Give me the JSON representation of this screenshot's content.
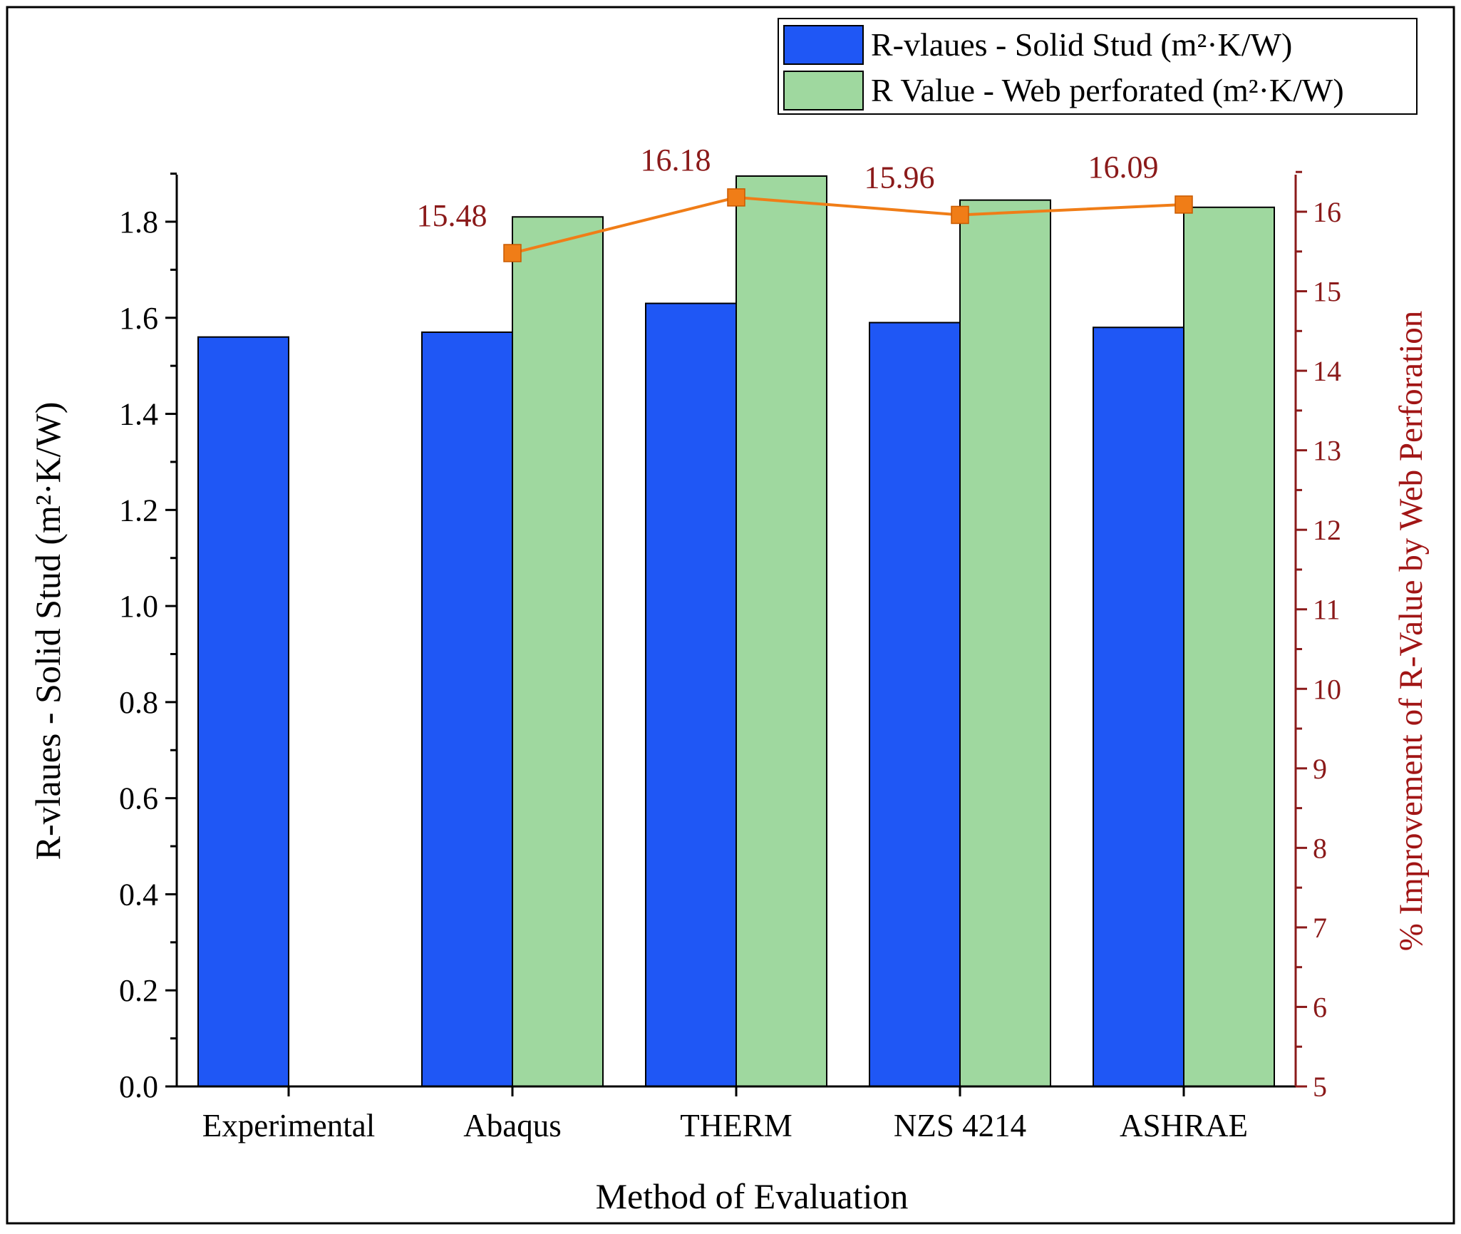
{
  "chart_data": {
    "type": "bar",
    "categories": [
      "Experimental",
      "Abaqus",
      "THERM",
      "NZS 4214",
      "ASHRAE"
    ],
    "series": [
      {
        "name": "R-vlaues - Solid Stud (m²·K/W)",
        "type": "bar",
        "axis": "left",
        "color": "#1f57f5",
        "values": [
          1.56,
          1.57,
          1.63,
          1.59,
          1.58
        ]
      },
      {
        "name": "R Value - Web perforated (m²·K/W)",
        "type": "bar",
        "axis": "left",
        "color": "#9fd89f",
        "values": [
          null,
          1.81,
          1.895,
          1.845,
          1.83
        ]
      },
      {
        "name": "% Improvement of R-Value by Web Perforation",
        "type": "line",
        "axis": "right",
        "color": "#f07d17",
        "values": [
          null,
          15.48,
          16.18,
          15.96,
          16.09
        ],
        "labels": [
          null,
          "15.48",
          "16.18",
          "15.96",
          "16.09"
        ]
      }
    ],
    "xlabel": "Method of Evaluation",
    "ylabel": "R-vlaues - Solid Stud (m²·K/W)",
    "y2label": "% Improvement of R-Value by Web Perforation",
    "ylim": [
      0,
      1.9
    ],
    "y2lim": [
      5,
      16.5
    ],
    "yticks": [
      "0.0",
      "0.2",
      "0.4",
      "0.6",
      "0.8",
      "1.0",
      "1.2",
      "1.4",
      "1.6",
      "1.8"
    ],
    "y2ticks": [
      "5",
      "6",
      "7",
      "8",
      "9",
      "10",
      "11",
      "12",
      "13",
      "14",
      "15",
      "16"
    ],
    "legend_position": "top-right",
    "grid": false,
    "right_axis_color": "#8b1a1a"
  }
}
